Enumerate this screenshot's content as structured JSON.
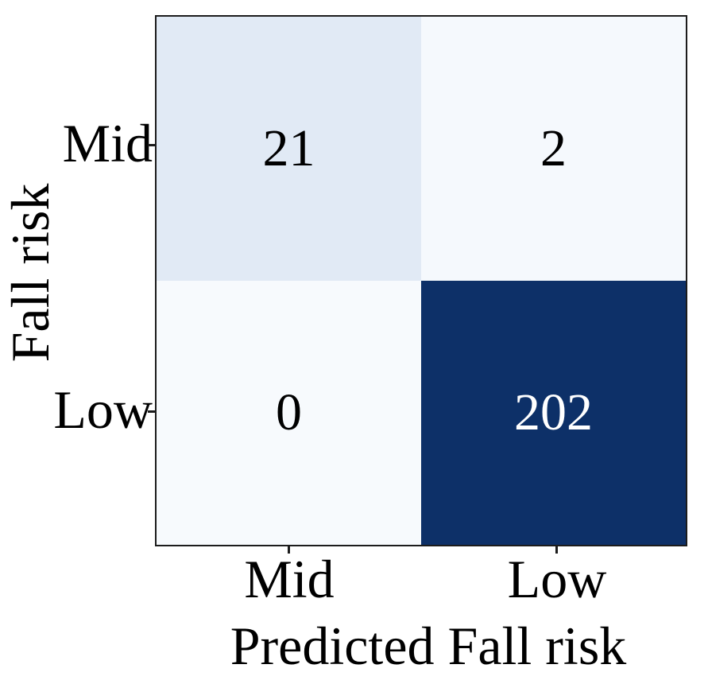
{
  "chart_data": {
    "type": "heatmap",
    "title": "",
    "xlabel": "Predicted Fall risk",
    "ylabel": "Fall risk",
    "x_tick_labels": [
      "Mid",
      "Low"
    ],
    "y_tick_labels": [
      "Mid",
      "Low"
    ],
    "matrix": [
      [
        21,
        2
      ],
      [
        0,
        202
      ]
    ],
    "value_range": [
      0,
      202
    ],
    "colormap": "Blues",
    "cell_colors": [
      [
        "#e1eaf5",
        "#f5f9fd"
      ],
      [
        "#f7fafd",
        "#0d3068"
      ]
    ],
    "cell_text_colors": [
      [
        "#000000",
        "#000000"
      ],
      [
        "#000000",
        "#ffffff"
      ]
    ],
    "spine_color": "#1c1c1c",
    "background_color": "#ffffff",
    "grid": false,
    "legend": false
  }
}
